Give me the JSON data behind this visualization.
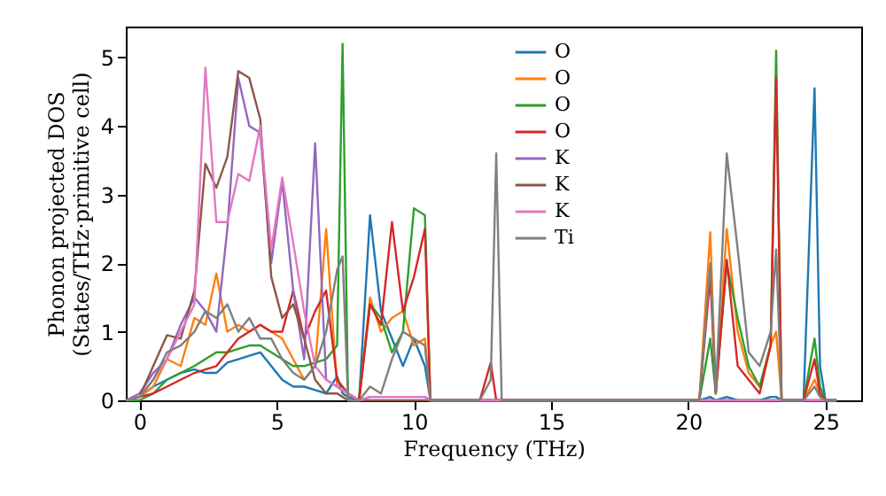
{
  "chart_data": {
    "type": "line",
    "xlabel": "Frequency (THz)",
    "ylabel": "Phonon projected DOS\n(States/THz·primitive cell)",
    "x": [
      -0.5,
      0,
      0.5,
      1,
      1.5,
      2,
      2.4,
      2.8,
      3.2,
      3.6,
      4,
      4.4,
      4.8,
      5.2,
      5.6,
      6,
      6.4,
      6.8,
      7.2,
      7.4,
      7.6,
      8,
      8.4,
      8.8,
      9.2,
      9.6,
      10,
      10.4,
      10.6,
      12.4,
      12.8,
      13,
      13.2,
      13.6,
      20.4,
      20.8,
      21,
      21.4,
      21.8,
      22.2,
      22.6,
      23,
      23.2,
      23.4,
      24.2,
      24.6,
      24.8,
      25,
      25.4
    ],
    "series": [
      {
        "name": "O",
        "color": "#1f77b4",
        "values": [
          0,
          0.05,
          0.2,
          0.3,
          0.4,
          0.45,
          0.4,
          0.4,
          0.55,
          0.6,
          0.65,
          0.7,
          0.5,
          0.3,
          0.2,
          0.2,
          0.15,
          0.1,
          0.35,
          0.1,
          0.05,
          0,
          2.7,
          1.3,
          0.9,
          0.5,
          0.9,
          0.5,
          0,
          0,
          0,
          0,
          0,
          0,
          0,
          0.05,
          0,
          0.05,
          0,
          0,
          0,
          0.05,
          0.05,
          0,
          0,
          4.55,
          0.5,
          0,
          0
        ]
      },
      {
        "name": "O",
        "color": "#ff7f0e",
        "values": [
          0,
          0.05,
          0.2,
          0.6,
          0.5,
          1.2,
          1.1,
          1.85,
          1.0,
          1.1,
          1.0,
          1.1,
          1.0,
          0.9,
          0.6,
          0.3,
          0.5,
          2.5,
          0.2,
          0.15,
          0.1,
          0,
          1.5,
          1.0,
          1.2,
          1.3,
          0.8,
          0.9,
          0,
          0,
          0,
          0,
          0,
          0,
          0,
          2.45,
          0.1,
          2.5,
          1.0,
          0.4,
          0.2,
          0.8,
          1.0,
          0,
          0,
          0.3,
          0.1,
          0,
          0
        ]
      },
      {
        "name": "O",
        "color": "#2ca02c",
        "values": [
          0,
          0,
          0.1,
          0.3,
          0.4,
          0.5,
          0.6,
          0.7,
          0.7,
          0.75,
          0.8,
          0.8,
          0.7,
          0.6,
          0.5,
          0.5,
          0.55,
          0.6,
          0.8,
          5.2,
          0,
          0,
          1.4,
          1.2,
          0.7,
          1.0,
          2.8,
          2.7,
          0,
          0,
          0,
          0,
          0,
          0,
          0,
          0.9,
          0.1,
          2.0,
          1.2,
          0.5,
          0.2,
          0.8,
          5.1,
          0,
          0,
          0.9,
          0.2,
          0,
          0
        ]
      },
      {
        "name": "O",
        "color": "#d62728",
        "values": [
          0,
          0.05,
          0.1,
          0.2,
          0.3,
          0.4,
          0.45,
          0.5,
          0.7,
          0.9,
          1.0,
          1.1,
          1.0,
          1.0,
          1.6,
          0.9,
          1.3,
          1.6,
          0.3,
          0.2,
          0.1,
          0,
          1.4,
          1.1,
          2.6,
          1.3,
          1.8,
          2.5,
          0,
          0,
          0.55,
          0,
          0,
          0,
          0,
          1.8,
          0.1,
          2.05,
          0.5,
          0.3,
          0.1,
          0.8,
          4.7,
          0,
          0,
          0.6,
          0.1,
          0,
          0
        ]
      },
      {
        "name": "K",
        "color": "#9467bd",
        "values": [
          0,
          0.1,
          0.4,
          0.6,
          1.1,
          1.5,
          1.3,
          1.0,
          2.5,
          4.7,
          4.0,
          3.9,
          2.0,
          3.2,
          1.6,
          0.6,
          3.75,
          0.3,
          0.2,
          0.15,
          0.1,
          0,
          0.05,
          0.05,
          0.05,
          0.05,
          0.05,
          0.05,
          0,
          0,
          0,
          0,
          0,
          0,
          0,
          0,
          0,
          0,
          0,
          0,
          0,
          0,
          0,
          0,
          0,
          0,
          0,
          0,
          0
        ]
      },
      {
        "name": "K",
        "color": "#8c564b",
        "values": [
          0,
          0.05,
          0.5,
          0.95,
          0.9,
          1.6,
          3.45,
          3.1,
          3.55,
          4.8,
          4.7,
          4.1,
          1.8,
          1.2,
          1.4,
          0.9,
          0.3,
          0.1,
          0.1,
          0.05,
          0,
          0,
          0,
          0,
          0,
          0,
          0,
          0,
          0,
          0,
          0,
          0,
          0,
          0,
          0,
          0,
          0,
          0,
          0,
          0,
          0,
          0,
          0,
          0,
          0,
          0,
          0,
          0,
          0
        ]
      },
      {
        "name": "K",
        "color": "#e377c2",
        "values": [
          0,
          0.05,
          0.3,
          0.6,
          1.0,
          1.4,
          4.85,
          2.6,
          2.6,
          3.3,
          3.2,
          4.0,
          2.2,
          3.25,
          2.3,
          1.3,
          0.5,
          0.3,
          0.2,
          0.15,
          0.1,
          0,
          0.05,
          0.05,
          0.05,
          0.05,
          0.05,
          0.05,
          0,
          0,
          0,
          0,
          0,
          0,
          0,
          0,
          0,
          0,
          0,
          0,
          0,
          0,
          0,
          0,
          0,
          0,
          0,
          0,
          0
        ]
      },
      {
        "name": "Ti",
        "color": "#7f7f7f",
        "values": [
          0,
          0.05,
          0.3,
          0.7,
          0.8,
          1.0,
          1.3,
          1.2,
          1.4,
          1.0,
          1.2,
          0.9,
          0.9,
          0.6,
          0.4,
          0.3,
          0.5,
          1.0,
          1.9,
          2.1,
          0,
          0,
          0.2,
          0.1,
          0.6,
          1.0,
          0.9,
          0.8,
          0,
          0,
          0.3,
          3.6,
          0,
          0,
          0,
          2.0,
          0.1,
          3.6,
          2.2,
          0.7,
          0.5,
          1.0,
          2.2,
          0,
          0,
          0.2,
          0.05,
          0,
          0
        ]
      }
    ],
    "xlim": [
      -0.5,
      26.3
    ],
    "ylim": [
      0,
      5.45
    ],
    "xticks": [
      0,
      5,
      10,
      15,
      20,
      25
    ],
    "yticks": [
      0,
      1,
      2,
      3,
      4,
      5
    ],
    "grid": false,
    "legend": "top",
    "line_style": "solid"
  }
}
